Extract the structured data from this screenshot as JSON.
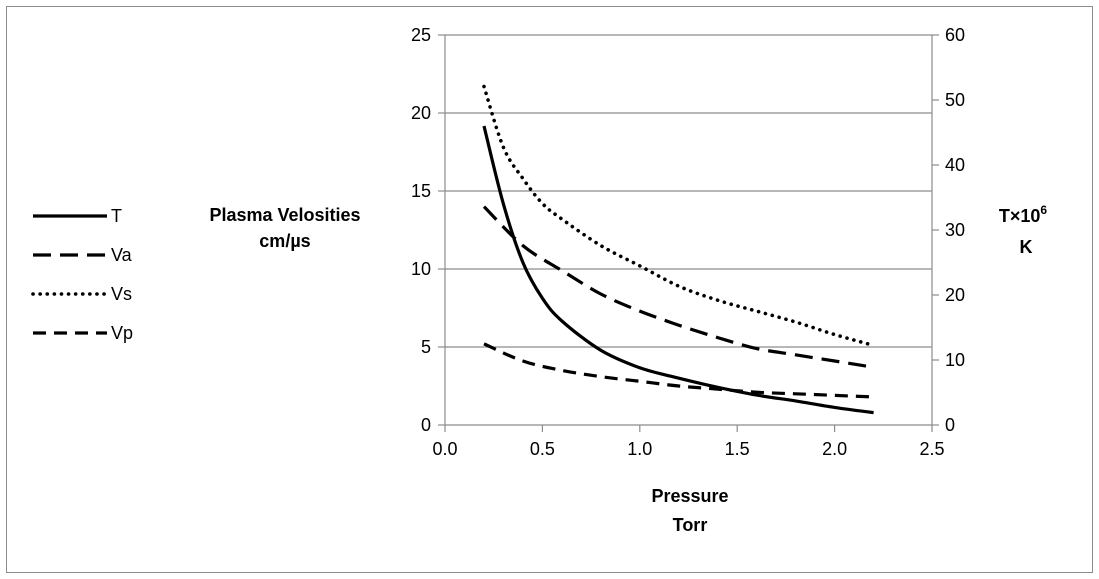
{
  "chart_data": {
    "type": "line",
    "xlabel": [
      "Pressure",
      "Torr"
    ],
    "ylabel": [
      "Plasma Velosities",
      "cm/µs"
    ],
    "y2label": {
      "line1_base": "T×10",
      "line1_sup": "6",
      "line2": "K"
    },
    "xlim": [
      0.0,
      2.5
    ],
    "ylim": [
      0,
      25
    ],
    "y2lim": [
      0,
      60
    ],
    "x_ticks": [
      "0.0",
      "0.5",
      "1.0",
      "1.5",
      "2.0",
      "2.5"
    ],
    "y_ticks": [
      "0",
      "5",
      "10",
      "15",
      "20",
      "25"
    ],
    "y2_ticks": [
      "0",
      "10",
      "20",
      "30",
      "40",
      "50",
      "60"
    ],
    "grid": "horizontal",
    "legend_position": "left",
    "series": [
      {
        "name": "T",
        "axis": "right",
        "style": "solid",
        "x": [
          0.2,
          0.3,
          0.4,
          0.5,
          0.6,
          0.8,
          1.0,
          1.2,
          1.4,
          1.6,
          1.8,
          2.0,
          2.2
        ],
        "y": [
          46,
          34,
          25,
          19.5,
          16,
          11.5,
          8.8,
          7.2,
          5.8,
          4.6,
          3.7,
          2.7,
          1.9
        ]
      },
      {
        "name": "Va",
        "axis": "left",
        "style": "long-dash",
        "x": [
          0.2,
          0.4,
          0.6,
          0.8,
          1.0,
          1.2,
          1.4,
          1.6,
          1.8,
          2.0,
          2.2
        ],
        "y": [
          14,
          11.5,
          9.9,
          8.4,
          7.3,
          6.4,
          5.6,
          4.9,
          4.5,
          4.1,
          3.7
        ]
      },
      {
        "name": "Vs",
        "axis": "left",
        "style": "dotted",
        "x": [
          0.2,
          0.3,
          0.4,
          0.5,
          0.6,
          0.8,
          1.0,
          1.2,
          1.4,
          1.6,
          1.8,
          2.0,
          2.2
        ],
        "y": [
          21.7,
          17.8,
          15.8,
          14.2,
          13.2,
          11.5,
          10.2,
          8.9,
          8.0,
          7.3,
          6.6,
          5.8,
          5.1
        ]
      },
      {
        "name": "Vp",
        "axis": "left",
        "style": "short-dash",
        "x": [
          0.2,
          0.4,
          0.6,
          0.8,
          1.0,
          1.2,
          1.4,
          1.6,
          1.8,
          2.0,
          2.2
        ],
        "y": [
          5.2,
          4.1,
          3.5,
          3.1,
          2.8,
          2.5,
          2.3,
          2.1,
          2.0,
          1.9,
          1.8
        ]
      }
    ]
  }
}
